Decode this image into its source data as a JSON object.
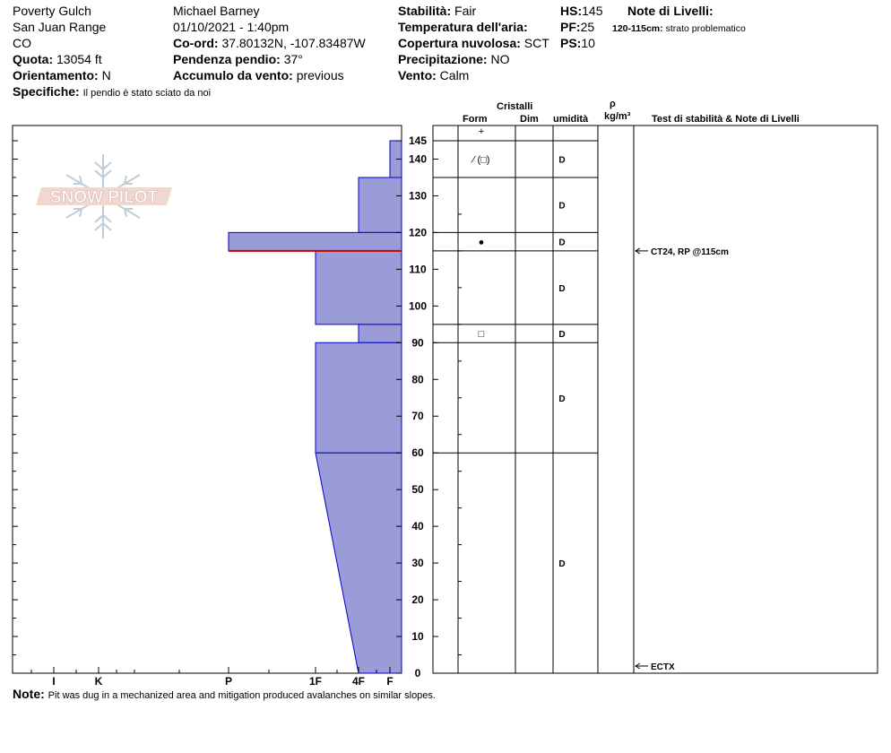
{
  "header": {
    "location": "Poverty Gulch",
    "range": "San Juan Range",
    "state": "CO",
    "elevation_label": "Quota:",
    "elevation_value": "13054 ft",
    "aspect_label": "Orientamento:",
    "aspect_value": "N",
    "specifics_label": "Specifiche:",
    "specifics_value": "Il pendio è stato sciato da noi",
    "observer": "Michael Barney",
    "datetime": "01/10/2021 - 1:40pm",
    "coord_label": "Co-ord:",
    "coord_value": "37.80132N, -107.83487W",
    "slope_label": "Pendenza pendio:",
    "slope_value": "37°",
    "wind_loading_label": "Accumulo da vento:",
    "wind_loading_value": "previous",
    "stability_label": "Stabilità:",
    "stability_value": "Fair",
    "air_temp_label": "Temperatura dell'aria:",
    "sky_label": "Copertura nuvolosa:",
    "sky_value": "SCT",
    "precip_label": "Precipitazione:",
    "precip_value": "NO",
    "wind_label": "Vento:",
    "wind_value": "Calm",
    "hs_label": "HS:",
    "hs_value": "145",
    "pf_label": "PF:",
    "pf_value": "25",
    "ps_label": "PS:",
    "ps_value": "10",
    "layer_notes_title": "Note di Livelli:",
    "layer_note_range": "120-115cm:",
    "layer_note_text": "strato problematico"
  },
  "footer": {
    "note_label": "Note:",
    "note_text": "Pit was dug in a mechanized area and mitigation produced avalanches on similar slopes."
  },
  "logo": {
    "text": "SNOW PILOT"
  },
  "columns": {
    "crystals": "Cristalli",
    "form": "Form",
    "dim": "Dim",
    "moisture": "umidità",
    "rho": "ρ",
    "density_unit": "kg/m³",
    "tests": "Test di stabilità & Note di Livelli"
  },
  "colors": {
    "fill": "#9b9bd7",
    "stroke": "#0000cc",
    "weak_layer": "#cc0000"
  },
  "chart_data": {
    "type": "area",
    "x_axis_categories": [
      "I",
      "K",
      "P",
      "1F",
      "4F",
      "F"
    ],
    "y_ticks": [
      0,
      10,
      20,
      30,
      40,
      50,
      60,
      70,
      80,
      90,
      100,
      110,
      120,
      130,
      140,
      145
    ],
    "ylim": [
      0,
      145
    ],
    "layers": [
      {
        "top": 145,
        "bottom": 135,
        "hardness_top": "F",
        "hardness_bottom": "F"
      },
      {
        "top": 135,
        "bottom": 120,
        "hardness_top": "4F",
        "hardness_bottom": "4F"
      },
      {
        "top": 120,
        "bottom": 115,
        "hardness_top": "P",
        "hardness_bottom": "P"
      },
      {
        "top": 115,
        "bottom": 95,
        "hardness_top": "1F",
        "hardness_bottom": "1F"
      },
      {
        "top": 95,
        "bottom": 90,
        "hardness_top": "4F",
        "hardness_bottom": "4F"
      },
      {
        "top": 90,
        "bottom": 60,
        "hardness_top": "1F",
        "hardness_bottom": "1F"
      },
      {
        "top": 60,
        "bottom": 0,
        "hardness_top": "1F",
        "hardness_bottom": "4F"
      }
    ],
    "weak_layer_depth": 115,
    "grain_layers": [
      {
        "top": 145,
        "bottom": 145,
        "form": "+",
        "moisture": ""
      },
      {
        "top": 145,
        "bottom": 135,
        "form": "⁄ (□)",
        "moisture": "D"
      },
      {
        "top": 135,
        "bottom": 120,
        "form": "",
        "moisture": "D"
      },
      {
        "top": 120,
        "bottom": 115,
        "form": "●",
        "moisture": "D"
      },
      {
        "top": 115,
        "bottom": 95,
        "form": "",
        "moisture": "D"
      },
      {
        "top": 95,
        "bottom": 90,
        "form": "□",
        "moisture": "D"
      },
      {
        "top": 90,
        "bottom": 60,
        "form": "",
        "moisture": "D"
      },
      {
        "top": 60,
        "bottom": 0,
        "form": "",
        "moisture": "D"
      }
    ],
    "tests": [
      {
        "depth": 115,
        "label": "CT24, RP @115cm"
      },
      {
        "depth": 0,
        "label": "ECTX"
      }
    ]
  }
}
